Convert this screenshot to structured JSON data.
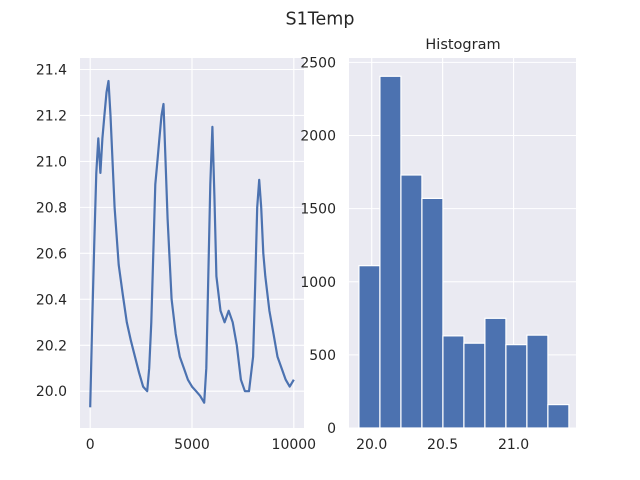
{
  "figure": {
    "suptitle": "S1Temp"
  },
  "style": {
    "axes_bg": "#eaeaf2",
    "grid": "#ffffff",
    "series_color": "#4c72b0",
    "text": "#262626"
  },
  "chart_data": [
    {
      "type": "line",
      "title": "",
      "xlabel": "",
      "ylabel": "",
      "xlim": [
        -500,
        10500
      ],
      "ylim": [
        19.84,
        21.45
      ],
      "grid": true,
      "xticks": [
        0,
        5000,
        10000
      ],
      "xtick_labels": [
        "0",
        "5000",
        "10000"
      ],
      "yticks": [
        20.0,
        20.2,
        20.4,
        20.6,
        20.8,
        21.0,
        21.2,
        21.4
      ],
      "ytick_labels": [
        "20.0",
        "20.2",
        "20.4",
        "20.6",
        "20.8",
        "21.0",
        "21.2",
        "21.4"
      ],
      "series": [
        {
          "x": [
            0,
            100,
            200,
            300,
            400,
            500,
            600,
            700,
            800,
            900,
            1000,
            1200,
            1400,
            1600,
            1800,
            2000,
            2200,
            2400,
            2600,
            2800,
            2900,
            3000,
            3100,
            3200,
            3300,
            3400,
            3500,
            3600,
            3800,
            4000,
            4200,
            4400,
            4600,
            4800,
            5000,
            5200,
            5400,
            5600,
            5700,
            5800,
            5900,
            6000,
            6100,
            6200,
            6400,
            6600,
            6800,
            7000,
            7200,
            7400,
            7600,
            7800,
            8000,
            8100,
            8200,
            8300,
            8400,
            8500,
            8600,
            8800,
            9000,
            9200,
            9400,
            9600,
            9800,
            10000
          ],
          "y": [
            19.93,
            20.3,
            20.65,
            20.95,
            21.1,
            20.95,
            21.1,
            21.2,
            21.3,
            21.35,
            21.2,
            20.8,
            20.55,
            20.42,
            20.3,
            20.22,
            20.15,
            20.08,
            20.02,
            20.0,
            20.1,
            20.3,
            20.6,
            20.9,
            21.0,
            21.1,
            21.2,
            21.25,
            20.75,
            20.4,
            20.25,
            20.15,
            20.1,
            20.05,
            20.02,
            20.0,
            19.98,
            19.95,
            20.1,
            20.5,
            20.9,
            21.15,
            20.85,
            20.5,
            20.35,
            20.3,
            20.35,
            20.3,
            20.2,
            20.05,
            20.0,
            20.0,
            20.15,
            20.45,
            20.8,
            20.92,
            20.8,
            20.6,
            20.5,
            20.35,
            20.25,
            20.15,
            20.1,
            20.05,
            20.02,
            20.05
          ]
        }
      ]
    },
    {
      "type": "bar",
      "title": "Histogram",
      "xlabel": "",
      "ylabel": "",
      "xlim": [
        19.84,
        21.44
      ],
      "ylim": [
        0,
        2530
      ],
      "grid": true,
      "xticks": [
        20.0,
        20.5,
        21.0
      ],
      "xtick_labels": [
        "20.0",
        "20.5",
        "21.0"
      ],
      "yticks": [
        0,
        500,
        1000,
        1500,
        2000,
        2500
      ],
      "ytick_labels": [
        "0",
        "500",
        "1000",
        "1500",
        "2000",
        "2500"
      ],
      "bin_edges": [
        19.91,
        20.058,
        20.206,
        20.354,
        20.502,
        20.65,
        20.798,
        20.946,
        21.094,
        21.242,
        21.39
      ],
      "values": [
        1110,
        2405,
        1730,
        1570,
        630,
        580,
        750,
        570,
        635,
        160
      ]
    }
  ]
}
